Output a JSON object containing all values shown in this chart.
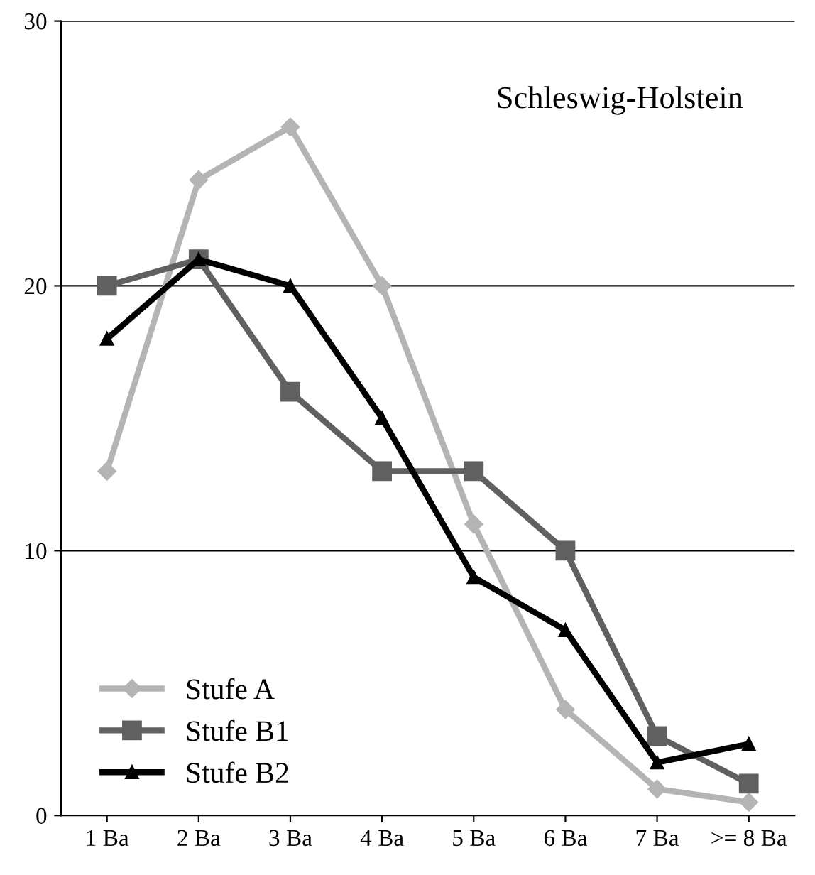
{
  "chart_data": {
    "type": "line",
    "title": "Schleswig-Holstein",
    "categories": [
      "1 Ba",
      "2 Ba",
      "3 Ba",
      "4 Ba",
      "5 Ba",
      "6 Ba",
      "7 Ba",
      ">= 8 Ba"
    ],
    "series": [
      {
        "name": "Stufe A",
        "color": "#b4b4b4",
        "marker": "diamond",
        "values": [
          13,
          24,
          26,
          20,
          11,
          4,
          1,
          0.5
        ]
      },
      {
        "name": "Stufe B1",
        "color": "#606060",
        "marker": "square",
        "values": [
          20,
          21,
          16,
          13,
          13,
          10,
          3,
          1.2
        ]
      },
      {
        "name": "Stufe B2",
        "color": "#000000",
        "marker": "triangle",
        "values": [
          18,
          21,
          20,
          15,
          9,
          7,
          2,
          2.7
        ]
      }
    ],
    "ylim": [
      0,
      30
    ],
    "yticks": [
      0,
      10,
      20,
      30
    ],
    "grid": "y",
    "legend": "bottom left",
    "line_style": "solid"
  }
}
